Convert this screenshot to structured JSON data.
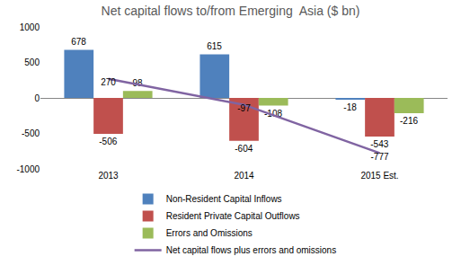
{
  "chart_data": {
    "type": "bar",
    "title": "Net capital flows to/from Emerging  Asia ($ bn)",
    "categories": [
      "2013",
      "2014",
      "2015 Est."
    ],
    "series": [
      {
        "name": "Non-Resident Capital Inflows",
        "color": "#4f81bd",
        "values": [
          678,
          615,
          -18
        ]
      },
      {
        "name": "Resident Private Capital Outflows",
        "color": "#c0504d",
        "values": [
          -506,
          -604,
          -543
        ]
      },
      {
        "name": "Errors and Omissions",
        "color": "#9bbb59",
        "values": [
          98,
          -108,
          -216
        ]
      },
      {
        "name": "Net capital flows plus errors and omissions",
        "type": "line",
        "color": "#8064a2",
        "values": [
          270,
          -97,
          -777
        ]
      }
    ],
    "ylim": [
      -1000,
      1000
    ],
    "yticks": [
      -1000,
      -500,
      0,
      500,
      1000
    ],
    "grid": false,
    "legend": "bottom",
    "data_labels": true
  }
}
